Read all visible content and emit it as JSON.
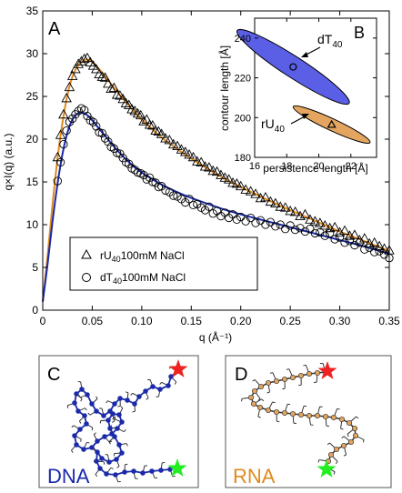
{
  "chart_data": [
    {
      "panel": "A",
      "type": "scatter",
      "xlabel": "q (Å⁻¹)",
      "ylabel": "q×I(q) (a.u.)",
      "xlim": [
        0,
        0.35
      ],
      "ylim": [
        0,
        35
      ],
      "xticks": [
        0,
        0.05,
        0.1,
        0.15,
        0.2,
        0.25,
        0.3,
        0.35
      ],
      "xtick_labels": [
        "0",
        "0.05",
        "0.10",
        "0.15",
        "0.20",
        "0.25",
        "0.30",
        "0.35"
      ],
      "yticks": [
        0,
        5,
        10,
        15,
        20,
        25,
        30,
        35
      ],
      "ytick_labels": [
        "0",
        "5",
        "10",
        "15",
        "20",
        "25",
        "30",
        "35"
      ],
      "grid": false,
      "legend_position": "bottom-left",
      "legend_items": [
        {
          "marker": "triangle",
          "label_main": "rU",
          "label_sub": "40",
          "label_rest": "100mM NaCl"
        },
        {
          "marker": "circle",
          "label_main": "dT",
          "label_sub": "40",
          "label_rest": "100mM NaCl"
        }
      ],
      "series": [
        {
          "marker": "triangle",
          "color": "#000000",
          "fit_color": "#e08a1e",
          "fit": {
            "x": [
              0.0,
              0.005,
              0.01,
              0.015,
              0.02,
              0.025,
              0.03,
              0.035,
              0.04,
              0.045,
              0.05,
              0.06,
              0.07,
              0.08,
              0.09,
              0.1,
              0.12,
              0.14,
              0.16,
              0.18,
              0.2,
              0.22,
              0.24,
              0.26,
              0.28,
              0.3,
              0.32,
              0.35
            ],
            "y": [
              1.0,
              6.5,
              12.5,
              17.8,
              22.0,
              25.2,
              27.3,
              28.5,
              29.1,
              29.3,
              29.0,
              27.8,
              26.3,
              24.9,
              23.5,
              22.3,
              20.2,
              18.5,
              17.0,
              15.6,
              14.4,
              13.3,
              12.2,
              11.2,
              10.2,
              9.2,
              8.3,
              6.9
            ]
          },
          "x": [
            0.015,
            0.018,
            0.021,
            0.024,
            0.027,
            0.03,
            0.033,
            0.036,
            0.039,
            0.042,
            0.045,
            0.048,
            0.051,
            0.054,
            0.057,
            0.06,
            0.063,
            0.066,
            0.069,
            0.072,
            0.075,
            0.078,
            0.081,
            0.084,
            0.087,
            0.09,
            0.093,
            0.096,
            0.099,
            0.102,
            0.105,
            0.108,
            0.111,
            0.114,
            0.117,
            0.12,
            0.124,
            0.128,
            0.132,
            0.136,
            0.14,
            0.144,
            0.148,
            0.152,
            0.156,
            0.16,
            0.164,
            0.168,
            0.172,
            0.176,
            0.18,
            0.184,
            0.188,
            0.192,
            0.196,
            0.2,
            0.205,
            0.21,
            0.215,
            0.22,
            0.225,
            0.23,
            0.235,
            0.24,
            0.245,
            0.25,
            0.255,
            0.26,
            0.265,
            0.27,
            0.275,
            0.28,
            0.285,
            0.29,
            0.295,
            0.3,
            0.305,
            0.31,
            0.315,
            0.32,
            0.325,
            0.33,
            0.335,
            0.34,
            0.345,
            0.35
          ],
          "y": [
            17.9,
            20.5,
            22.9,
            24.8,
            26.1,
            27.4,
            28.2,
            28.8,
            29.1,
            29.4,
            29.5,
            29.0,
            28.6,
            28.2,
            27.6,
            27.3,
            27.2,
            26.5,
            25.9,
            26.0,
            25.2,
            25.1,
            24.7,
            24.2,
            24.0,
            23.5,
            23.3,
            23.0,
            22.8,
            22.1,
            22.3,
            21.7,
            21.6,
            21.0,
            20.9,
            20.6,
            20.1,
            19.9,
            19.4,
            19.2,
            18.8,
            18.5,
            18.2,
            17.9,
            17.4,
            17.3,
            16.8,
            16.7,
            16.3,
            16.2,
            15.8,
            15.5,
            15.3,
            14.9,
            14.8,
            14.5,
            14.1,
            13.9,
            13.6,
            13.1,
            13.2,
            12.7,
            12.5,
            12.1,
            12.0,
            11.6,
            11.5,
            11.0,
            11.2,
            10.6,
            10.4,
            10.2,
            9.9,
            9.6,
            9.7,
            9.1,
            9.3,
            8.7,
            8.8,
            8.2,
            8.4,
            7.8,
            7.9,
            7.5,
            7.2,
            7.0
          ]
        },
        {
          "marker": "circle",
          "color": "#000000",
          "fit_color": "#1a2aa8",
          "fit": {
            "x": [
              0.0,
              0.005,
              0.01,
              0.015,
              0.02,
              0.025,
              0.03,
              0.035,
              0.04,
              0.045,
              0.05,
              0.06,
              0.07,
              0.08,
              0.09,
              0.1,
              0.12,
              0.14,
              0.16,
              0.18,
              0.2,
              0.22,
              0.24,
              0.26,
              0.28,
              0.3,
              0.32,
              0.35
            ],
            "y": [
              1.0,
              5.5,
              10.5,
              14.8,
              18.3,
              20.8,
              22.3,
              23.0,
              23.1,
              22.8,
              22.2,
              20.8,
              19.4,
              18.1,
              17.0,
              16.1,
              14.7,
              13.6,
              12.7,
              11.9,
              11.2,
              10.6,
              10.0,
              9.4,
              8.8,
              8.2,
              7.6,
              6.6
            ]
          },
          "x": [
            0.015,
            0.018,
            0.021,
            0.024,
            0.027,
            0.03,
            0.033,
            0.036,
            0.039,
            0.042,
            0.045,
            0.048,
            0.051,
            0.054,
            0.057,
            0.06,
            0.063,
            0.066,
            0.069,
            0.072,
            0.075,
            0.078,
            0.081,
            0.084,
            0.087,
            0.09,
            0.093,
            0.096,
            0.099,
            0.102,
            0.105,
            0.108,
            0.111,
            0.114,
            0.117,
            0.12,
            0.124,
            0.128,
            0.132,
            0.136,
            0.14,
            0.144,
            0.148,
            0.152,
            0.156,
            0.16,
            0.164,
            0.168,
            0.172,
            0.176,
            0.18,
            0.184,
            0.188,
            0.192,
            0.196,
            0.2,
            0.205,
            0.21,
            0.215,
            0.22,
            0.225,
            0.23,
            0.235,
            0.24,
            0.245,
            0.25,
            0.255,
            0.26,
            0.265,
            0.27,
            0.275,
            0.28,
            0.285,
            0.29,
            0.295,
            0.3,
            0.305,
            0.31,
            0.315,
            0.32,
            0.325,
            0.33,
            0.335,
            0.34,
            0.345,
            0.35
          ],
          "y": [
            15.1,
            17.3,
            19.4,
            21.0,
            22.0,
            22.4,
            22.9,
            23.3,
            23.6,
            23.4,
            22.7,
            22.2,
            22.0,
            21.5,
            20.8,
            20.7,
            20.1,
            19.7,
            19.1,
            18.9,
            18.4,
            18.3,
            17.8,
            17.3,
            17.1,
            16.6,
            16.4,
            16.1,
            16.0,
            15.8,
            15.3,
            15.5,
            15.0,
            14.9,
            14.4,
            14.5,
            14.0,
            13.8,
            13.4,
            13.3,
            13.0,
            12.6,
            13.0,
            12.3,
            12.4,
            12.0,
            11.7,
            12.1,
            11.3,
            11.6,
            11.0,
            11.4,
            10.8,
            11.2,
            10.6,
            10.9,
            10.4,
            10.8,
            10.2,
            10.5,
            10.0,
            10.3,
            9.8,
            10.0,
            9.5,
            9.9,
            9.4,
            9.6,
            9.2,
            9.5,
            9.0,
            9.1,
            8.7,
            9.0,
            8.3,
            8.5,
            7.9,
            8.1,
            7.6,
            7.9,
            7.1,
            7.3,
            6.8,
            6.9,
            6.5,
            6.1
          ]
        }
      ]
    },
    {
      "panel": "B",
      "type": "scatter",
      "xlabel": "persistence length [Å]",
      "ylabel": "contour length [Å]",
      "xlim": [
        16,
        23.6
      ],
      "ylim": [
        180,
        250
      ],
      "xticks": [
        16,
        18,
        20,
        22
      ],
      "xtick_labels": [
        "16",
        "18",
        "20",
        "22"
      ],
      "yticks": [
        180,
        200,
        220,
        240
      ],
      "ytick_labels": [
        "180",
        "200",
        "220",
        "240"
      ],
      "series": [
        {
          "label_main": "dT",
          "label_sub": "40",
          "marker": "circle",
          "x": 18.4,
          "y": 225.5,
          "ellipse_color": "#5a5fe6",
          "ellipse_semi_axes": [
            2.6,
            9.5
          ],
          "ellipse_tilt_deg": 33
        },
        {
          "label_main": "rU",
          "label_sub": "40",
          "marker": "triangle",
          "x": 20.8,
          "y": 196.5,
          "ellipse_color": "#e3a560",
          "ellipse_semi_axes": [
            1.65,
            5.4
          ],
          "ellipse_tilt_deg": 25
        }
      ]
    }
  ],
  "panel_labels": {
    "a": "A",
    "b": "B",
    "c": "C",
    "d": "D"
  },
  "colors": {
    "dna": "#1a2aa8",
    "rna": "#e08a1e",
    "rna_beads": "#e3a560",
    "star_red": "#ee2222",
    "star_green": "#22ee22"
  },
  "molecules": {
    "dna": {
      "label": "DNA"
    },
    "rna": {
      "label": "RNA"
    }
  }
}
